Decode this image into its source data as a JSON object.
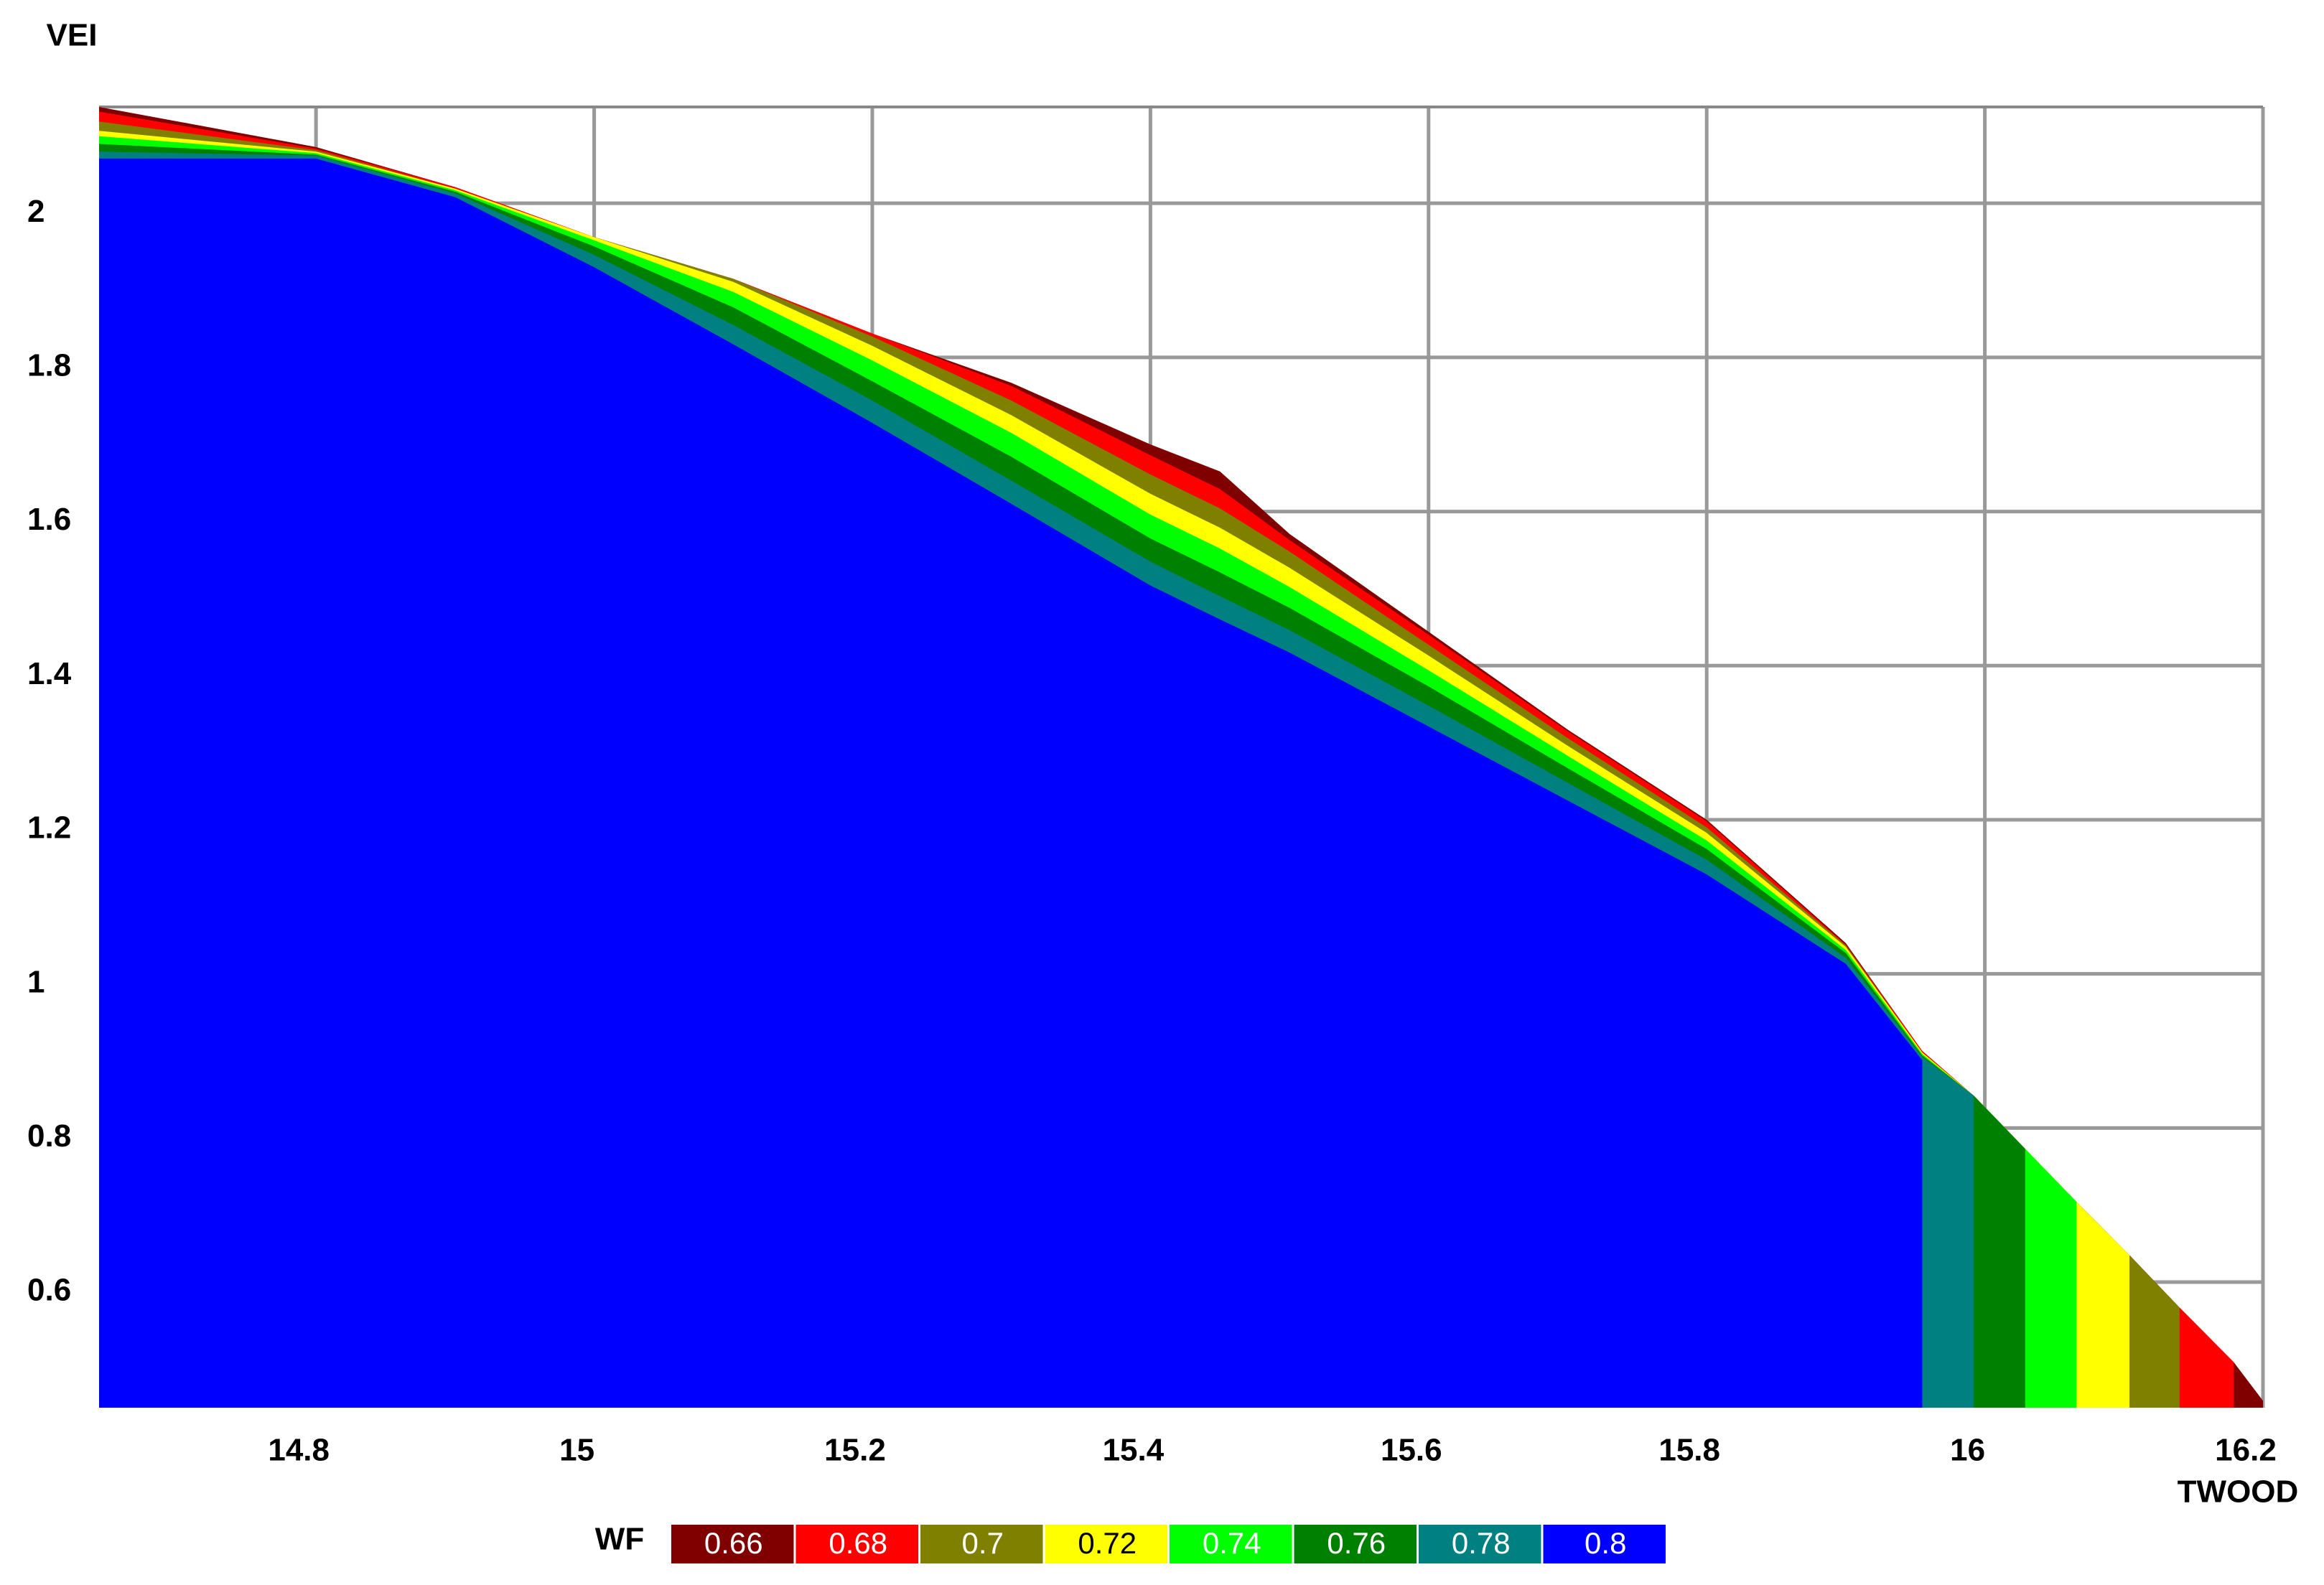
{
  "chart_data": {
    "type": "contour",
    "x_label": "TWOOD",
    "y_label": "VEI",
    "legend_title": "WF",
    "xlim": [
      14.644,
      16.2
    ],
    "ylim": [
      0.437,
      2.125
    ],
    "xticks": [
      14.8,
      15,
      15.2,
      15.4,
      15.6,
      15.8,
      16,
      16.2
    ],
    "yticks": [
      0.6,
      0.8,
      1,
      1.2,
      1.4,
      1.6,
      1.8,
      2
    ],
    "grid": true,
    "x": [
      14.644,
      14.8,
      14.9,
      15.0,
      15.1,
      15.2,
      15.3,
      15.4,
      15.45,
      15.5,
      15.6,
      15.7,
      15.8,
      15.9,
      15.955,
      15.992,
      16.029,
      16.066,
      16.104,
      16.14,
      16.179,
      16.2
    ],
    "series": [
      {
        "name": "0.66",
        "color": "#800000",
        "values": [
          2.125,
          2.073,
          2.021,
          1.956,
          1.902,
          1.831,
          1.767,
          1.687,
          1.652,
          1.571,
          1.444,
          1.317,
          1.2,
          1.04,
          0.9,
          0.842,
          0.773,
          0.704,
          0.635,
          0.567,
          0.496,
          0.446
        ]
      },
      {
        "name": "0.68",
        "color": "#ff0000",
        "values": [
          2.119,
          2.071,
          2.021,
          1.956,
          1.902,
          1.831,
          1.763,
          1.673,
          1.629,
          1.563,
          1.44,
          1.315,
          1.198,
          1.038,
          0.9,
          0.842,
          0.773,
          0.704,
          0.635,
          0.567,
          0.496,
          null
        ]
      },
      {
        "name": "0.7",
        "color": "#808000",
        "values": [
          2.106,
          2.069,
          2.019,
          1.956,
          1.902,
          1.827,
          1.744,
          1.648,
          1.604,
          1.548,
          1.427,
          1.306,
          1.19,
          1.037,
          0.898,
          0.842,
          0.773,
          0.704,
          0.635,
          0.567,
          null,
          null
        ]
      },
      {
        "name": "0.72",
        "color": "#ffff00",
        "values": [
          2.094,
          2.067,
          2.019,
          1.956,
          1.898,
          1.815,
          1.725,
          1.623,
          1.579,
          1.527,
          1.413,
          1.296,
          1.183,
          1.035,
          0.898,
          0.842,
          0.773,
          0.704,
          0.635,
          null,
          null,
          null
        ]
      },
      {
        "name": "0.74",
        "color": "#00ff00",
        "values": [
          2.087,
          2.065,
          2.017,
          1.952,
          1.885,
          1.796,
          1.702,
          1.596,
          1.552,
          1.502,
          1.394,
          1.283,
          1.173,
          1.031,
          0.896,
          0.842,
          0.773,
          0.704,
          null,
          null,
          null,
          null
        ]
      },
      {
        "name": "0.76",
        "color": "#008000",
        "values": [
          2.077,
          2.063,
          2.015,
          1.944,
          1.865,
          1.769,
          1.671,
          1.565,
          1.521,
          1.475,
          1.373,
          1.267,
          1.162,
          1.027,
          0.894,
          0.842,
          0.773,
          null,
          null,
          null,
          null,
          null
        ]
      },
      {
        "name": "0.78",
        "color": "#008080",
        "values": [
          2.067,
          2.062,
          2.013,
          1.933,
          1.842,
          1.744,
          1.64,
          1.535,
          1.49,
          1.446,
          1.348,
          1.248,
          1.148,
          1.021,
          0.892,
          0.842,
          null,
          null,
          null,
          null,
          null,
          null
        ]
      },
      {
        "name": "0.8",
        "color": "#0000ff",
        "values": [
          2.058,
          2.058,
          2.008,
          1.917,
          1.817,
          1.715,
          1.61,
          1.504,
          1.46,
          1.417,
          1.321,
          1.225,
          1.129,
          1.013,
          0.888,
          null,
          null,
          null,
          null,
          null,
          null,
          null
        ]
      }
    ]
  }
}
